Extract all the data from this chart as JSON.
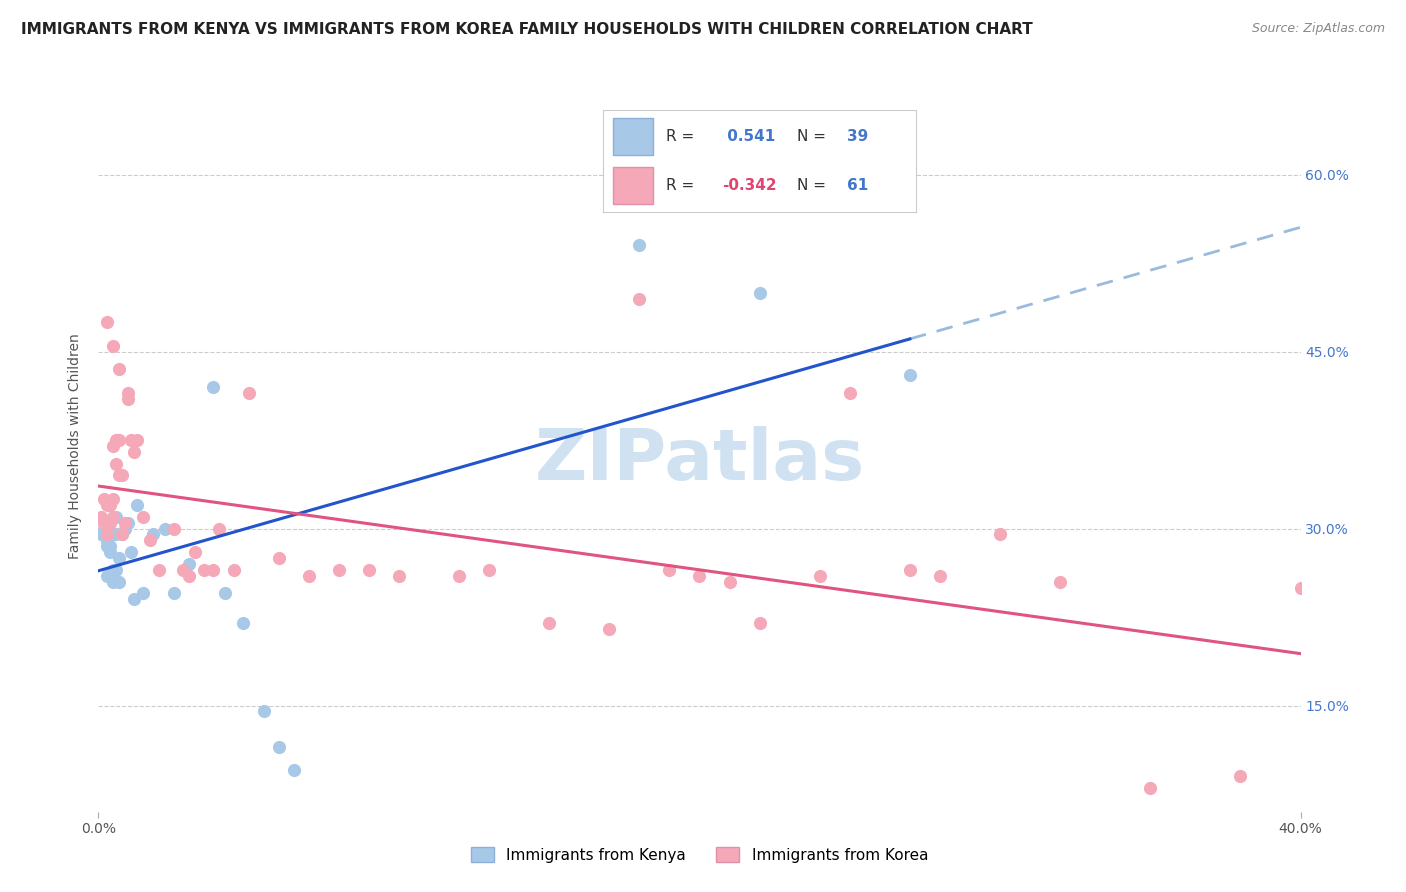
{
  "title": "IMMIGRANTS FROM KENYA VS IMMIGRANTS FROM KOREA FAMILY HOUSEHOLDS WITH CHILDREN CORRELATION CHART",
  "source": "Source: ZipAtlas.com",
  "ylabel": "Family Households with Children",
  "yaxis_ticks": [
    0.15,
    0.3,
    0.45,
    0.6
  ],
  "yaxis_labels": [
    "15.0%",
    "30.0%",
    "45.0%",
    "60.0%"
  ],
  "xlim": [
    0.0,
    0.4
  ],
  "ylim": [
    0.06,
    0.68
  ],
  "kenya_R": 0.541,
  "kenya_N": 39,
  "korea_R": -0.342,
  "korea_N": 61,
  "kenya_color": "#a8c8e8",
  "korea_color": "#f4a8b8",
  "kenya_line_color": "#2255cc",
  "korea_line_color": "#e05580",
  "dashed_line_color": "#99bbdd",
  "background_color": "#ffffff",
  "grid_color": "#cccccc",
  "kenya_x": [
    0.001,
    0.002,
    0.002,
    0.003,
    0.003,
    0.003,
    0.003,
    0.003,
    0.004,
    0.004,
    0.004,
    0.005,
    0.005,
    0.005,
    0.006,
    0.006,
    0.006,
    0.007,
    0.007,
    0.008,
    0.009,
    0.01,
    0.011,
    0.012,
    0.013,
    0.015,
    0.018,
    0.022,
    0.025,
    0.03,
    0.038,
    0.042,
    0.048,
    0.055,
    0.06,
    0.065,
    0.18,
    0.22,
    0.27
  ],
  "kenya_y": [
    0.295,
    0.3,
    0.295,
    0.29,
    0.305,
    0.29,
    0.285,
    0.26,
    0.295,
    0.285,
    0.28,
    0.295,
    0.265,
    0.255,
    0.31,
    0.295,
    0.265,
    0.275,
    0.255,
    0.295,
    0.3,
    0.305,
    0.28,
    0.24,
    0.32,
    0.245,
    0.295,
    0.3,
    0.245,
    0.27,
    0.42,
    0.245,
    0.22,
    0.145,
    0.115,
    0.095,
    0.54,
    0.5,
    0.43
  ],
  "korea_x": [
    0.001,
    0.002,
    0.002,
    0.003,
    0.003,
    0.003,
    0.004,
    0.004,
    0.005,
    0.005,
    0.005,
    0.006,
    0.006,
    0.007,
    0.007,
    0.008,
    0.008,
    0.009,
    0.01,
    0.01,
    0.011,
    0.012,
    0.013,
    0.015,
    0.017,
    0.02,
    0.025,
    0.028,
    0.03,
    0.032,
    0.035,
    0.038,
    0.04,
    0.045,
    0.05,
    0.06,
    0.07,
    0.08,
    0.09,
    0.1,
    0.12,
    0.13,
    0.15,
    0.17,
    0.18,
    0.19,
    0.2,
    0.21,
    0.22,
    0.24,
    0.25,
    0.27,
    0.28,
    0.3,
    0.32,
    0.35,
    0.38,
    0.4,
    0.003,
    0.005,
    0.007
  ],
  "korea_y": [
    0.31,
    0.325,
    0.305,
    0.32,
    0.305,
    0.295,
    0.32,
    0.305,
    0.325,
    0.31,
    0.37,
    0.375,
    0.355,
    0.375,
    0.345,
    0.345,
    0.295,
    0.305,
    0.415,
    0.41,
    0.375,
    0.365,
    0.375,
    0.31,
    0.29,
    0.265,
    0.3,
    0.265,
    0.26,
    0.28,
    0.265,
    0.265,
    0.3,
    0.265,
    0.415,
    0.275,
    0.26,
    0.265,
    0.265,
    0.26,
    0.26,
    0.265,
    0.22,
    0.215,
    0.495,
    0.265,
    0.26,
    0.255,
    0.22,
    0.26,
    0.415,
    0.265,
    0.26,
    0.295,
    0.255,
    0.08,
    0.09,
    0.25,
    0.475,
    0.455,
    0.435
  ],
  "watermark_text": "ZIPatlas",
  "watermark_color": "#c8ddf0",
  "title_fontsize": 11,
  "source_fontsize": 9,
  "axis_label_fontsize": 10,
  "tick_fontsize": 10,
  "legend_fontsize": 11
}
